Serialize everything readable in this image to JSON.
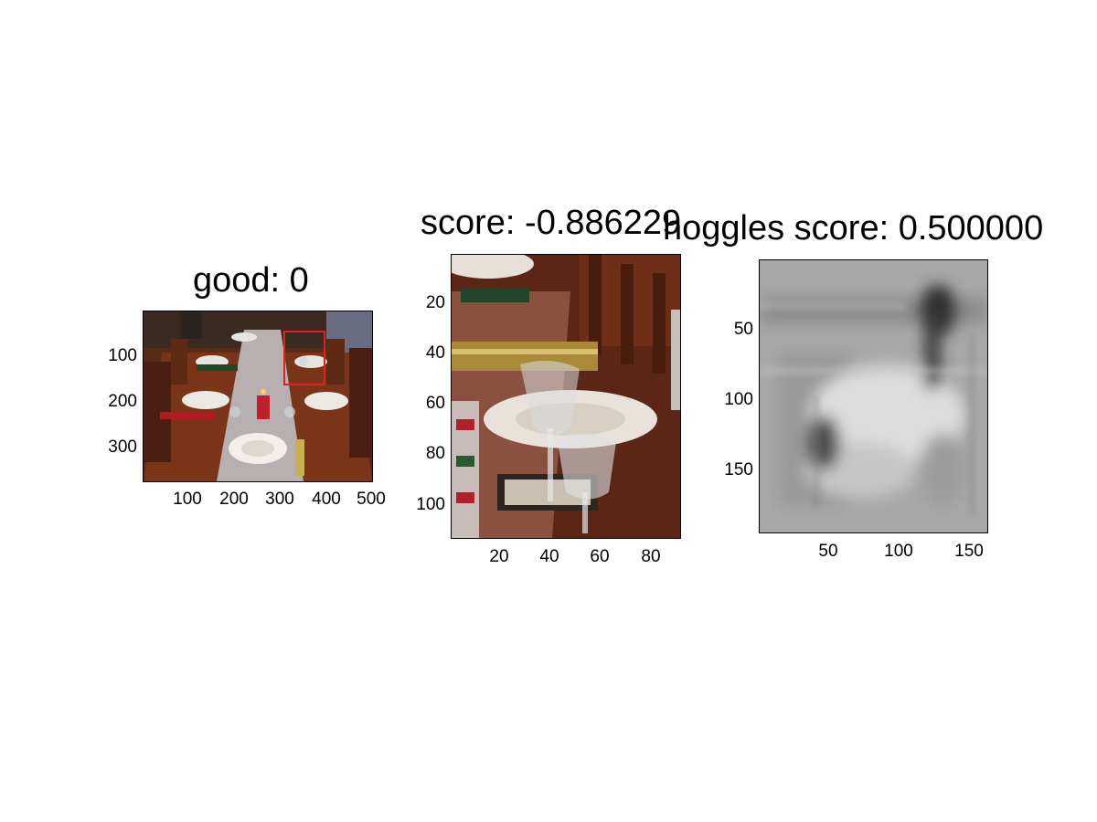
{
  "panels": [
    {
      "title": "good: 0",
      "y_ticks": [
        "100",
        "200",
        "300"
      ],
      "x_ticks": [
        "100",
        "200",
        "300",
        "400",
        "500"
      ],
      "image": "dining-table-photo",
      "highlight": {
        "color": "#e02020",
        "shape": "bounding-box"
      }
    },
    {
      "title": "score: -0.886229",
      "y_ticks": [
        "20",
        "40",
        "60",
        "80",
        "100"
      ],
      "x_ticks": [
        "20",
        "40",
        "60",
        "80"
      ],
      "image": "cropped-wine-glasses-photo"
    },
    {
      "title": "hoggles score: 0.500000",
      "y_ticks": [
        "50",
        "100",
        "150"
      ],
      "x_ticks": [
        "50",
        "100",
        "150"
      ],
      "image": "grayscale-hoggles-visualization"
    }
  ]
}
